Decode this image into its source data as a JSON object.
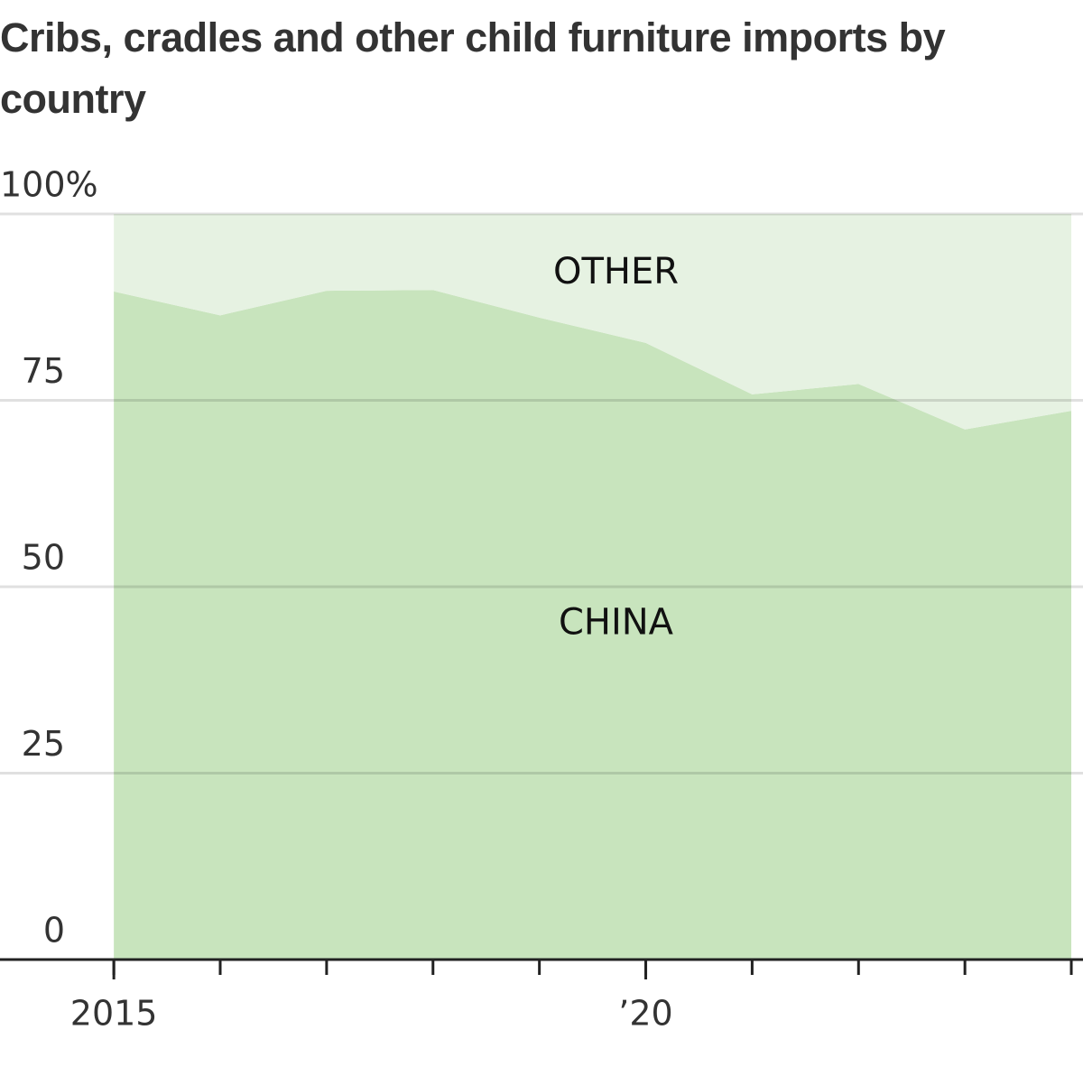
{
  "chart_data": {
    "type": "stacked_area",
    "title": "Cribs, cradles and other child furniture imports by country",
    "x": [
      2015,
      2016,
      2017,
      2018,
      2019,
      2020,
      2021,
      2022,
      2023,
      2024
    ],
    "series": [
      {
        "name": "CHINA",
        "color": "#c8e4bd",
        "values": [
          89.6,
          86.4,
          89.7,
          89.8,
          86.1,
          82.7,
          75.8,
          77.2,
          71.1,
          73.6
        ]
      },
      {
        "name": "OTHER",
        "color": "#e6f2e2",
        "values": [
          10.4,
          13.6,
          10.3,
          10.2,
          13.9,
          17.3,
          24.2,
          22.8,
          28.9,
          26.4
        ]
      }
    ],
    "xlim": [
      2013.93,
      2024.11
    ],
    "xticks": [
      2015,
      {
        "value": 2020,
        "label": "’20"
      }
    ],
    "xminorticks": [
      2015,
      2016,
      2017,
      2018,
      2019,
      2020,
      2021,
      2022,
      2023,
      2024
    ],
    "ylim": [
      0,
      100
    ],
    "yticks": [
      0,
      25,
      50,
      75,
      {
        "value": 100,
        "label": "100%"
      }
    ],
    "grid": true
  }
}
